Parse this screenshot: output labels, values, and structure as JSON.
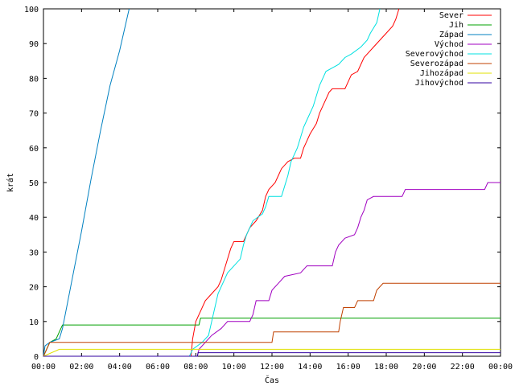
{
  "chart_data": {
    "type": "line",
    "title": "",
    "xlabel": "Čas",
    "ylabel": "krát",
    "xlim": [
      "00:00",
      "24:00"
    ],
    "ylim": [
      0,
      100
    ],
    "grid": false,
    "legend_position": "top-right",
    "x_ticks": [
      "00:00",
      "02:00",
      "04:00",
      "06:00",
      "08:00",
      "10:00",
      "12:00",
      "14:00",
      "16:00",
      "18:00",
      "20:00",
      "22:00",
      "00:00"
    ],
    "y_ticks": [
      "0",
      "10",
      "20",
      "30",
      "40",
      "50",
      "60",
      "70",
      "80",
      "90",
      "100"
    ],
    "series": [
      {
        "name": "Sever",
        "color": "#ff0000",
        "points": [
          [
            "00:00",
            0
          ],
          [
            "07:45",
            0
          ],
          [
            "07:50",
            5
          ],
          [
            "08:00",
            10
          ],
          [
            "08:10",
            12
          ],
          [
            "08:20",
            14
          ],
          [
            "08:30",
            16
          ],
          [
            "08:50",
            18
          ],
          [
            "09:10",
            20
          ],
          [
            "09:20",
            22
          ],
          [
            "09:30",
            25
          ],
          [
            "09:40",
            28
          ],
          [
            "09:50",
            31
          ],
          [
            "10:00",
            33
          ],
          [
            "10:30",
            33
          ],
          [
            "10:40",
            35
          ],
          [
            "10:50",
            37
          ],
          [
            "11:10",
            39
          ],
          [
            "11:30",
            42
          ],
          [
            "11:40",
            46
          ],
          [
            "11:50",
            48
          ],
          [
            "12:10",
            50
          ],
          [
            "12:20",
            52
          ],
          [
            "12:30",
            54
          ],
          [
            "12:50",
            56
          ],
          [
            "13:10",
            57
          ],
          [
            "13:30",
            57
          ],
          [
            "13:40",
            60
          ],
          [
            "13:50",
            62
          ],
          [
            "14:00",
            64
          ],
          [
            "14:20",
            67
          ],
          [
            "14:30",
            70
          ],
          [
            "14:40",
            72
          ],
          [
            "14:50",
            74
          ],
          [
            "15:00",
            76
          ],
          [
            "15:10",
            77
          ],
          [
            "15:50",
            77
          ],
          [
            "16:00",
            79
          ],
          [
            "16:10",
            81
          ],
          [
            "16:30",
            82
          ],
          [
            "16:40",
            84
          ],
          [
            "16:50",
            86
          ],
          [
            "17:00",
            87
          ],
          [
            "17:20",
            89
          ],
          [
            "17:40",
            91
          ],
          [
            "18:00",
            93
          ],
          [
            "18:20",
            95
          ],
          [
            "18:30",
            97
          ],
          [
            "18:40",
            100
          ]
        ]
      },
      {
        "name": "Jih",
        "color": "#00a000",
        "points": [
          [
            "00:00",
            0
          ],
          [
            "00:10",
            2
          ],
          [
            "00:20",
            4
          ],
          [
            "00:40",
            5
          ],
          [
            "00:50",
            7
          ],
          [
            "01:00",
            9
          ],
          [
            "08:10",
            9
          ],
          [
            "08:15",
            11
          ],
          [
            "24:00",
            11
          ]
        ]
      },
      {
        "name": "Západ",
        "color": "#0080c0",
        "points": [
          [
            "00:00",
            0
          ],
          [
            "00:05",
            3
          ],
          [
            "00:20",
            4
          ],
          [
            "00:50",
            5
          ],
          [
            "01:00",
            8
          ],
          [
            "01:30",
            22
          ],
          [
            "02:00",
            36
          ],
          [
            "02:30",
            51
          ],
          [
            "03:00",
            65
          ],
          [
            "03:30",
            78
          ],
          [
            "04:00",
            88
          ],
          [
            "04:30",
            100
          ]
        ]
      },
      {
        "name": "Východ",
        "color": "#a000c0",
        "points": [
          [
            "00:00",
            0
          ],
          [
            "08:05",
            0
          ],
          [
            "08:10",
            2
          ],
          [
            "08:30",
            4
          ],
          [
            "08:50",
            6
          ],
          [
            "09:20",
            8
          ],
          [
            "09:40",
            10
          ],
          [
            "10:50",
            10
          ],
          [
            "11:00",
            12
          ],
          [
            "11:10",
            16
          ],
          [
            "11:50",
            16
          ],
          [
            "12:00",
            19
          ],
          [
            "12:20",
            21
          ],
          [
            "12:40",
            23
          ],
          [
            "13:30",
            24
          ],
          [
            "13:50",
            26
          ],
          [
            "15:10",
            26
          ],
          [
            "15:20",
            30
          ],
          [
            "15:30",
            32
          ],
          [
            "15:50",
            34
          ],
          [
            "16:20",
            35
          ],
          [
            "16:30",
            37
          ],
          [
            "16:40",
            40
          ],
          [
            "16:50",
            42
          ],
          [
            "17:00",
            45
          ],
          [
            "17:20",
            46
          ],
          [
            "18:50",
            46
          ],
          [
            "19:00",
            48
          ],
          [
            "23:10",
            48
          ],
          [
            "23:20",
            50
          ],
          [
            "24:00",
            50
          ]
        ]
      },
      {
        "name": "Severovýchod",
        "color": "#00e0e0",
        "points": [
          [
            "00:00",
            0
          ],
          [
            "07:40",
            0
          ],
          [
            "07:50",
            2
          ],
          [
            "08:20",
            4
          ],
          [
            "08:40",
            6
          ],
          [
            "08:50",
            10
          ],
          [
            "09:00",
            14
          ],
          [
            "09:10",
            18
          ],
          [
            "09:20",
            20
          ],
          [
            "09:30",
            22
          ],
          [
            "09:40",
            24
          ],
          [
            "10:00",
            26
          ],
          [
            "10:20",
            28
          ],
          [
            "10:30",
            32
          ],
          [
            "10:40",
            35
          ],
          [
            "10:50",
            37
          ],
          [
            "11:00",
            39
          ],
          [
            "11:30",
            41
          ],
          [
            "11:40",
            43
          ],
          [
            "11:50",
            46
          ],
          [
            "12:30",
            46
          ],
          [
            "12:40",
            49
          ],
          [
            "12:50",
            52
          ],
          [
            "13:00",
            56
          ],
          [
            "13:20",
            60
          ],
          [
            "13:30",
            63
          ],
          [
            "13:40",
            66
          ],
          [
            "13:50",
            68
          ],
          [
            "14:10",
            72
          ],
          [
            "14:20",
            75
          ],
          [
            "14:30",
            78
          ],
          [
            "14:40",
            80
          ],
          [
            "14:50",
            82
          ],
          [
            "15:10",
            83
          ],
          [
            "15:30",
            84
          ],
          [
            "15:50",
            86
          ],
          [
            "16:10",
            87
          ],
          [
            "16:40",
            89
          ],
          [
            "17:00",
            91
          ],
          [
            "17:10",
            93
          ],
          [
            "17:30",
            96
          ],
          [
            "17:40",
            100
          ]
        ]
      },
      {
        "name": "Severozápad",
        "color": "#c04000",
        "points": [
          [
            "00:00",
            0
          ],
          [
            "00:10",
            2
          ],
          [
            "00:20",
            4
          ],
          [
            "12:00",
            4
          ],
          [
            "12:05",
            7
          ],
          [
            "15:30",
            7
          ],
          [
            "15:35",
            10
          ],
          [
            "15:45",
            14
          ],
          [
            "16:20",
            14
          ],
          [
            "16:30",
            16
          ],
          [
            "17:20",
            16
          ],
          [
            "17:30",
            19
          ],
          [
            "17:50",
            21
          ],
          [
            "24:00",
            21
          ]
        ]
      },
      {
        "name": "Jihozápad",
        "color": "#e0e000",
        "points": [
          [
            "00:00",
            0
          ],
          [
            "00:50",
            2
          ],
          [
            "24:00",
            2
          ]
        ]
      },
      {
        "name": "Jihovýchod",
        "color": "#3000a0",
        "points": [
          [
            "00:00",
            0
          ],
          [
            "08:05",
            0
          ],
          [
            "08:07",
            1
          ],
          [
            "24:00",
            1
          ]
        ]
      }
    ]
  }
}
